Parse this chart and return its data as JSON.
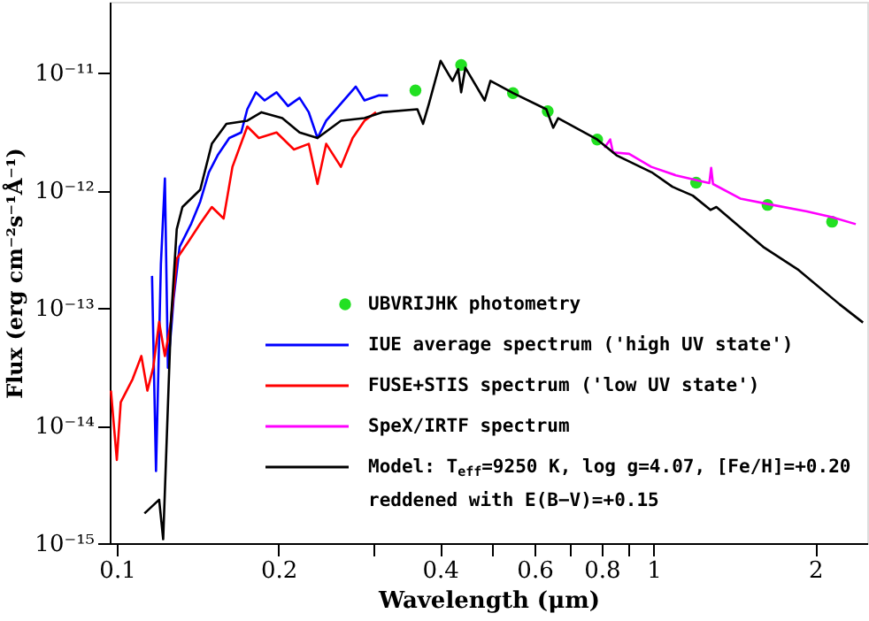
{
  "chart_data": {
    "type": "line",
    "xlabel": "Wavelength (μm)",
    "ylabel": "Flux (erg cm⁻²s⁻¹Å⁻¹)",
    "log": "xy",
    "grid": false,
    "legend": "bottom right",
    "line_style": "solid",
    "xlim": [
      0.097,
      2.5
    ],
    "ylim": [
      1e-15,
      4e-11
    ],
    "xticks": [
      0.1,
      0.2,
      {
        "value": 0.3,
        "label": null
      },
      0.4,
      {
        "value": 0.5,
        "label": null
      },
      0.6,
      {
        "value": 0.7,
        "label": null
      },
      0.8,
      {
        "value": 0.9,
        "label": null
      },
      1,
      2
    ],
    "yticks": [
      {
        "value": 1e-15,
        "label": "10⁻¹⁵"
      },
      {
        "value": 1e-14,
        "label": "10⁻¹⁴"
      },
      {
        "value": 1e-13,
        "label": "10⁻¹³"
      },
      {
        "value": 1e-12,
        "label": "10⁻¹²"
      },
      {
        "value": 1e-11,
        "label": "10⁻¹¹"
      }
    ],
    "series": [
      {
        "name": "UBVRIJHK photometry",
        "type": "scatter",
        "marker": "circle",
        "color": "#22e022",
        "x": [
          0.36,
          0.438,
          0.547,
          0.635,
          0.785,
          1.2,
          1.63,
          2.15
        ],
        "values": [
          7.06e-12,
          1.16e-11,
          6.7e-12,
          4.7e-12,
          2.7e-12,
          1.16e-12,
          7.5e-13,
          5.4e-13
        ]
      },
      {
        "name": "IUE average spectrum ('high UV state')",
        "color": "#0000ff",
        "x": [
          0.1163,
          0.1183,
          0.1208,
          0.1229,
          0.1245,
          0.1266,
          0.1276,
          0.1309,
          0.1376,
          0.143,
          0.1484,
          0.1541,
          0.162,
          0.1705,
          0.175,
          0.1816,
          0.1885,
          0.1984,
          0.2084,
          0.219,
          0.2278,
          0.2365,
          0.2455,
          0.2615,
          0.2787,
          0.2893,
          0.308,
          0.32
        ],
        "values": [
          1.87e-13,
          4.1e-15,
          2.34e-13,
          1.26e-12,
          3.1e-14,
          7.6e-14,
          1.21e-13,
          3.3e-13,
          5.2e-13,
          8e-13,
          1.42e-12,
          1.98e-12,
          2.78e-12,
          3.1e-12,
          4.88e-12,
          6.8e-12,
          5.8e-12,
          6.8e-12,
          5.2e-12,
          6.1e-12,
          4.6e-12,
          2.78e-12,
          3.9e-12,
          5.45e-12,
          7.6e-12,
          5.8e-12,
          6.4e-12,
          6.4e-12
        ]
      },
      {
        "name": "FUSE+STIS spectrum ('low UV state')",
        "color": "#ff0000",
        "x": [
          0.0975,
          0.1,
          0.1017,
          0.107,
          0.1111,
          0.114,
          0.1169,
          0.1199,
          0.1229,
          0.1261,
          0.1293,
          0.136,
          0.143,
          0.1503,
          0.1581,
          0.1642,
          0.175,
          0.1839,
          0.1984,
          0.2138,
          0.2278,
          0.2365,
          0.2455,
          0.2615,
          0.275,
          0.2893,
          0.304
        ],
        "values": [
          1.98e-14,
          5.1e-15,
          1.58e-14,
          2.48e-14,
          3.9e-14,
          1.98e-14,
          3.1e-14,
          7.6e-14,
          3.9e-14,
          7.6e-14,
          2.62e-13,
          3.67e-13,
          5.2e-13,
          7.2e-13,
          5.75e-13,
          1.58e-12,
          3.48e-12,
          2.78e-12,
          3.1e-12,
          2.22e-12,
          2.48e-12,
          1.13e-12,
          2.48e-12,
          1.58e-12,
          2.78e-12,
          3.9e-12,
          4.6e-12
        ]
      },
      {
        "name": "SpeX/IRTF spectrum",
        "color": "#ff00ff",
        "x": [
          0.81,
          0.83,
          0.84,
          0.9,
          0.99,
          1.1,
          1.27,
          1.28,
          1.29,
          1.45,
          1.64,
          1.93,
          2.15,
          2.38
        ],
        "values": [
          2.3e-12,
          2.7e-12,
          2.1e-12,
          2.04e-12,
          1.58e-12,
          1.34e-12,
          1.15e-12,
          1.55e-12,
          1.13e-12,
          8.5e-13,
          7.6e-13,
          6.6e-13,
          5.9e-13,
          5.15e-13
        ]
      },
      {
        "name": "Model: T$_{eff}$=9250 K, log g=4.07, [Fe/H]=+0.20\nreddened with E(B−V)=+0.15",
        "color": "#000000",
        "x": [
          0.1126,
          0.1199,
          0.122,
          0.1261,
          0.1293,
          0.1325,
          0.143,
          0.1503,
          0.16,
          0.175,
          0.186,
          0.2033,
          0.219,
          0.2365,
          0.2615,
          0.2893,
          0.312,
          0.363,
          0.372,
          0.3815,
          0.401,
          0.422,
          0.4325,
          0.438,
          0.446,
          0.4845,
          0.4966,
          0.547,
          0.631,
          0.65,
          0.664,
          0.785,
          0.853,
          0.992,
          1.084,
          1.183,
          1.276,
          1.309,
          1.6,
          1.862,
          2.222,
          2.455
        ],
        "values": [
          1.79e-15,
          2.34e-15,
          1.08e-15,
          7.6e-14,
          4.66e-13,
          7.2e-13,
          1.01e-12,
          2.48e-12,
          3.67e-12,
          3.9e-12,
          4.6e-12,
          4.1e-12,
          3.1e-12,
          2.78e-12,
          3.9e-12,
          4.1e-12,
          4.6e-12,
          4.88e-12,
          3.67e-12,
          5.45e-12,
          1.26e-11,
          8.5e-12,
          1.07e-11,
          6.8e-12,
          1.1e-11,
          5.8e-12,
          8.5e-12,
          6.7e-12,
          4.88e-12,
          3.4e-12,
          4.1e-12,
          2.7e-12,
          1.98e-12,
          1.42e-12,
          1.07e-12,
          9e-13,
          6.8e-13,
          7.2e-13,
          3.3e-13,
          2.1e-13,
          1.07e-13,
          7.5e-14
        ]
      }
    ]
  }
}
